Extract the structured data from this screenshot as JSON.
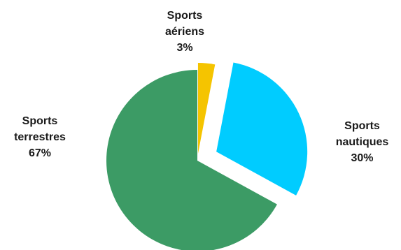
{
  "chart_data": {
    "type": "pie",
    "title": "",
    "exploded": true,
    "slices": [
      {
        "category_lines": [
          "Sports",
          "aériens"
        ],
        "percent_label": "3%",
        "value": 3,
        "color": "#f5c400"
      },
      {
        "category_lines": [
          "Sports",
          "nautiques"
        ],
        "percent_label": "30%",
        "value": 30,
        "color": "#00ccff"
      },
      {
        "category_lines": [
          "Sports",
          "terrestres"
        ],
        "percent_label": "67%",
        "value": 67,
        "color": "#3c9b65"
      }
    ],
    "legend": "none"
  }
}
